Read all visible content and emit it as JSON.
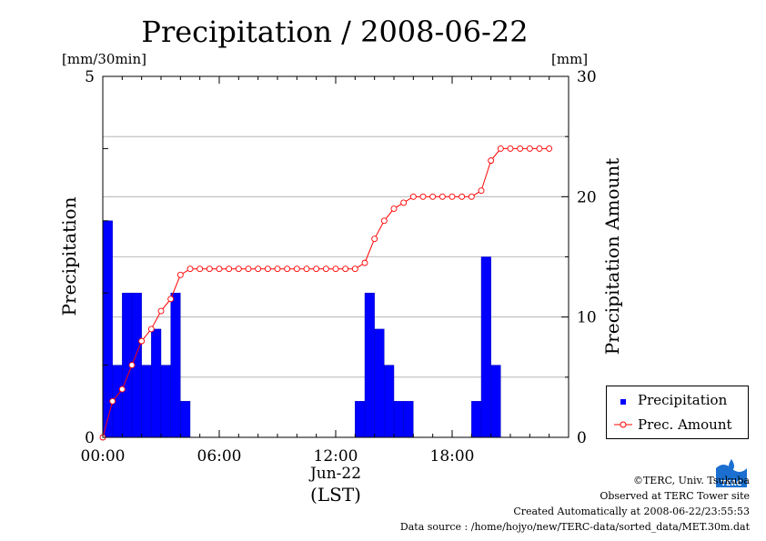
{
  "chart_data": {
    "type": "bar",
    "title": "Precipitation / 2008-06-22",
    "left_unit": "[mm/30min]",
    "right_unit": "[mm]",
    "ylabel_left": "Precipitation",
    "ylabel_right": "Precipitation Amount",
    "ylim_left": [
      0,
      5
    ],
    "ylim_right": [
      0,
      30
    ],
    "yticks_left": [
      "0",
      "5"
    ],
    "yticks_right": [
      "0",
      "10",
      "20",
      "30"
    ],
    "xlim_hours": [
      0,
      24
    ],
    "x_ticks": [
      "00:00",
      "06:00",
      "12:00",
      "18:00"
    ],
    "x_date_label": "Jun-22",
    "x_zone_label": "(LST)",
    "grid": true,
    "bar_color": "#0000ff",
    "line_color": "#ff0000",
    "series": [
      {
        "name": "Precipitation",
        "kind": "bar",
        "axis": "left",
        "start_times": [
          "00:00",
          "00:30",
          "01:00",
          "01:30",
          "02:00",
          "02:30",
          "03:00",
          "03:30",
          "04:00",
          "13:00",
          "13:30",
          "14:00",
          "14:30",
          "15:00",
          "15:30",
          "19:00",
          "19:30",
          "20:00"
        ],
        "values": [
          3.0,
          1.0,
          2.0,
          2.0,
          1.0,
          1.5,
          1.0,
          2.0,
          0.5,
          0.5,
          2.0,
          1.5,
          1.0,
          0.5,
          0.5,
          0.5,
          2.5,
          1.0
        ]
      },
      {
        "name": "Prec. Amount",
        "kind": "line",
        "axis": "right",
        "times": [
          "00:00",
          "00:30",
          "01:00",
          "01:30",
          "02:00",
          "02:30",
          "03:00",
          "03:30",
          "04:00",
          "04:30",
          "05:00",
          "05:30",
          "06:00",
          "06:30",
          "07:00",
          "07:30",
          "08:00",
          "08:30",
          "09:00",
          "09:30",
          "10:00",
          "10:30",
          "11:00",
          "11:30",
          "12:00",
          "12:30",
          "13:00",
          "13:30",
          "14:00",
          "14:30",
          "15:00",
          "15:30",
          "16:00",
          "16:30",
          "17:00",
          "17:30",
          "18:00",
          "18:30",
          "19:00",
          "19:30",
          "20:00",
          "20:30",
          "21:00",
          "21:30",
          "22:00",
          "22:30",
          "23:00"
        ],
        "values": [
          0,
          3,
          4,
          6,
          8,
          9,
          10.5,
          11.5,
          13.5,
          14,
          14,
          14,
          14,
          14,
          14,
          14,
          14,
          14,
          14,
          14,
          14,
          14,
          14,
          14,
          14,
          14,
          14,
          14.5,
          16.5,
          18,
          19,
          19.5,
          20,
          20,
          20,
          20,
          20,
          20,
          20,
          20.5,
          23,
          24,
          24,
          24,
          24,
          24,
          24
        ]
      }
    ]
  },
  "footer": {
    "credit": "©TERC, Univ. Tsukuba",
    "site": "Observed at TERC Tower site",
    "created": "Created Automatically at 2008-06-22/23:55:53",
    "source": "Data source : /home/hojyo/new/TERC-data/sorted_data/MET.30m.dat"
  },
  "logo": {
    "text": "TERC",
    "color": "#1a6fd0"
  }
}
